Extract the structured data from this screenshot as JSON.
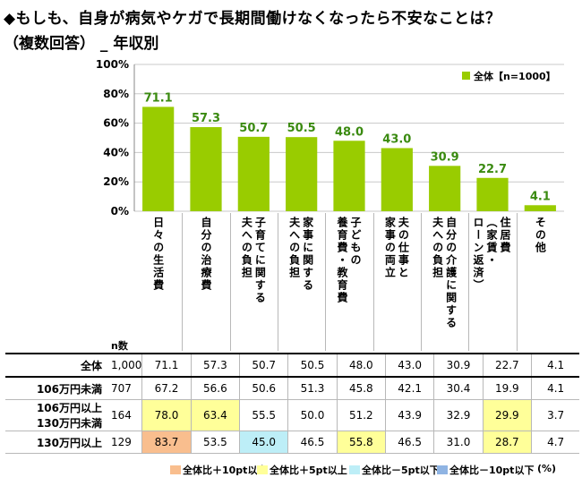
{
  "title_line1": "◆もしも、自身が病気やケガで長期間働けなくなったら不安なことは？",
  "title_line2": "（複数回答） _ 年収別",
  "chart_data": {
    "type": "bar",
    "categories": [
      "日々の生活費",
      "自分の治療費",
      "子育てに関する夫への負担",
      "家事に関する夫への負担",
      "子どもの養育費・教育費",
      "夫の仕事と家事の両立",
      "自分の介護に関する夫への負担",
      "住居費（家賃・ローン返済）",
      "その他"
    ],
    "series": [
      {
        "name": "全体【n=1000】",
        "values": [
          71.1,
          57.3,
          50.7,
          50.5,
          48.0,
          43.0,
          30.9,
          22.7,
          4.1
        ]
      }
    ],
    "data_labels": [
      "71.1",
      "57.3",
      "50.7",
      "50.5",
      "48.0",
      "43.0",
      "30.9",
      "22.7",
      "4.1"
    ],
    "ylim": [
      0,
      100
    ],
    "yticks": [
      "0%",
      "20%",
      "40%",
      "60%",
      "80%",
      "100%"
    ],
    "bar_color": "#99cc00",
    "legend_position": "top-right"
  },
  "category_labels": [
    [
      "日",
      "々",
      "の",
      "生",
      "活",
      "費"
    ],
    [
      "自",
      "分",
      "の",
      "治",
      "療",
      "費"
    ],
    [
      "子育てに関する",
      "夫への負担"
    ],
    [
      "家事に関する",
      "夫への負担"
    ],
    [
      "子どもの",
      "養育費・教育費"
    ],
    [
      "夫の仕事と",
      "家事の両立"
    ],
    [
      "自分の介護に関する",
      "夫への負担"
    ],
    [
      "住居費",
      "（家賃・",
      "ローン返済）"
    ],
    [
      "その他"
    ]
  ],
  "table": {
    "n_header": "n数",
    "rows": [
      {
        "label": "全体",
        "n": "1,000",
        "values": [
          "71.1",
          "57.3",
          "50.7",
          "50.5",
          "48.0",
          "43.0",
          "30.9",
          "22.7",
          "4.1"
        ],
        "highlights": [
          "",
          "",
          "",
          "",
          "",
          "",
          "",
          "",
          ""
        ]
      },
      {
        "label": "106万円未満",
        "n": "707",
        "values": [
          "67.2",
          "56.6",
          "50.6",
          "51.3",
          "45.8",
          "42.1",
          "30.4",
          "19.9",
          "4.1"
        ],
        "highlights": [
          "",
          "",
          "",
          "",
          "",
          "",
          "",
          "",
          ""
        ]
      },
      {
        "label": "106万円以上\n130万円未満",
        "n": "164",
        "values": [
          "78.0",
          "63.4",
          "55.5",
          "50.0",
          "51.2",
          "43.9",
          "32.9",
          "29.9",
          "3.7"
        ],
        "highlights": [
          "yellow",
          "yellow",
          "",
          "",
          "",
          "",
          "",
          "yellow",
          ""
        ]
      },
      {
        "label": "130万円以上",
        "n": "129",
        "values": [
          "83.7",
          "53.5",
          "45.0",
          "46.5",
          "55.8",
          "46.5",
          "31.0",
          "28.7",
          "4.7"
        ],
        "highlights": [
          "orange",
          "",
          "cyan",
          "",
          "yellow",
          "",
          "",
          "yellow",
          ""
        ]
      }
    ]
  },
  "legend_bottom": [
    {
      "label": "全体比＋10pt以上",
      "color": "#f9be8e"
    },
    {
      "label": "全体比＋5pt以上",
      "color": "#ffff99"
    },
    {
      "label": "全体比－5pt以下",
      "color": "#bdeef7"
    },
    {
      "label": "全体比－10pt以下",
      "color": "#8fb4e3"
    }
  ],
  "unit_note": "(%)"
}
